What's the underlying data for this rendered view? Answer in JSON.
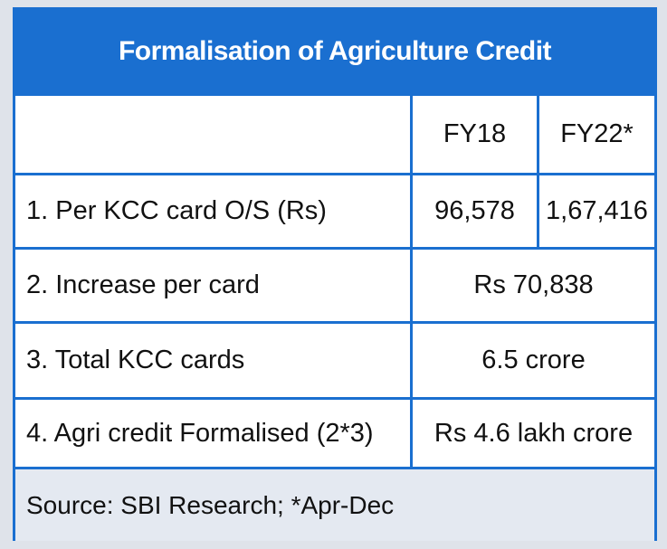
{
  "title": "Formalisation of Agriculture Credit",
  "header": {
    "col1": "FY18",
    "col2": "FY22*"
  },
  "rows": [
    {
      "label": "1. Per KCC card O/S (Rs)",
      "fy18": "96,578",
      "fy22": "1,67,416"
    },
    {
      "label": "2. Increase per card",
      "value": "Rs 70,838"
    },
    {
      "label": "3. Total KCC cards",
      "value": "6.5 crore"
    },
    {
      "label": "4. Agri credit Formalised (2*3)",
      "value": "Rs 4.6 lakh crore"
    }
  ],
  "source": "Source: SBI Research; *Apr-Dec",
  "colors": {
    "accent": "#1a6fd0",
    "source_bg": "#e4e9f1"
  }
}
